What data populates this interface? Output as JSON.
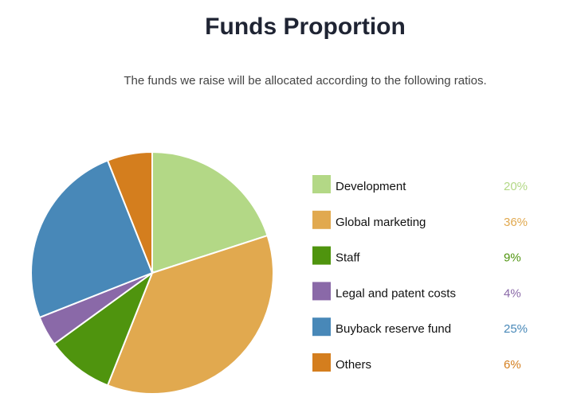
{
  "chart_data": {
    "type": "pie",
    "title": "Funds Proportion",
    "subtitle": "The funds we raise will be allocated according to the following ratios.",
    "categories": [
      "Development",
      "Global marketing",
      "Staff",
      "Legal and patent costs",
      "Buyback reserve fund",
      "Others"
    ],
    "values": [
      20,
      36,
      9,
      4,
      25,
      6
    ],
    "value_labels": [
      "20%",
      "36%",
      "9%",
      "4%",
      "25%",
      "6%"
    ],
    "colors": [
      "#b3d886",
      "#e1a94f",
      "#4f940e",
      "#8a69a8",
      "#4888b8",
      "#d47e1e"
    ]
  }
}
